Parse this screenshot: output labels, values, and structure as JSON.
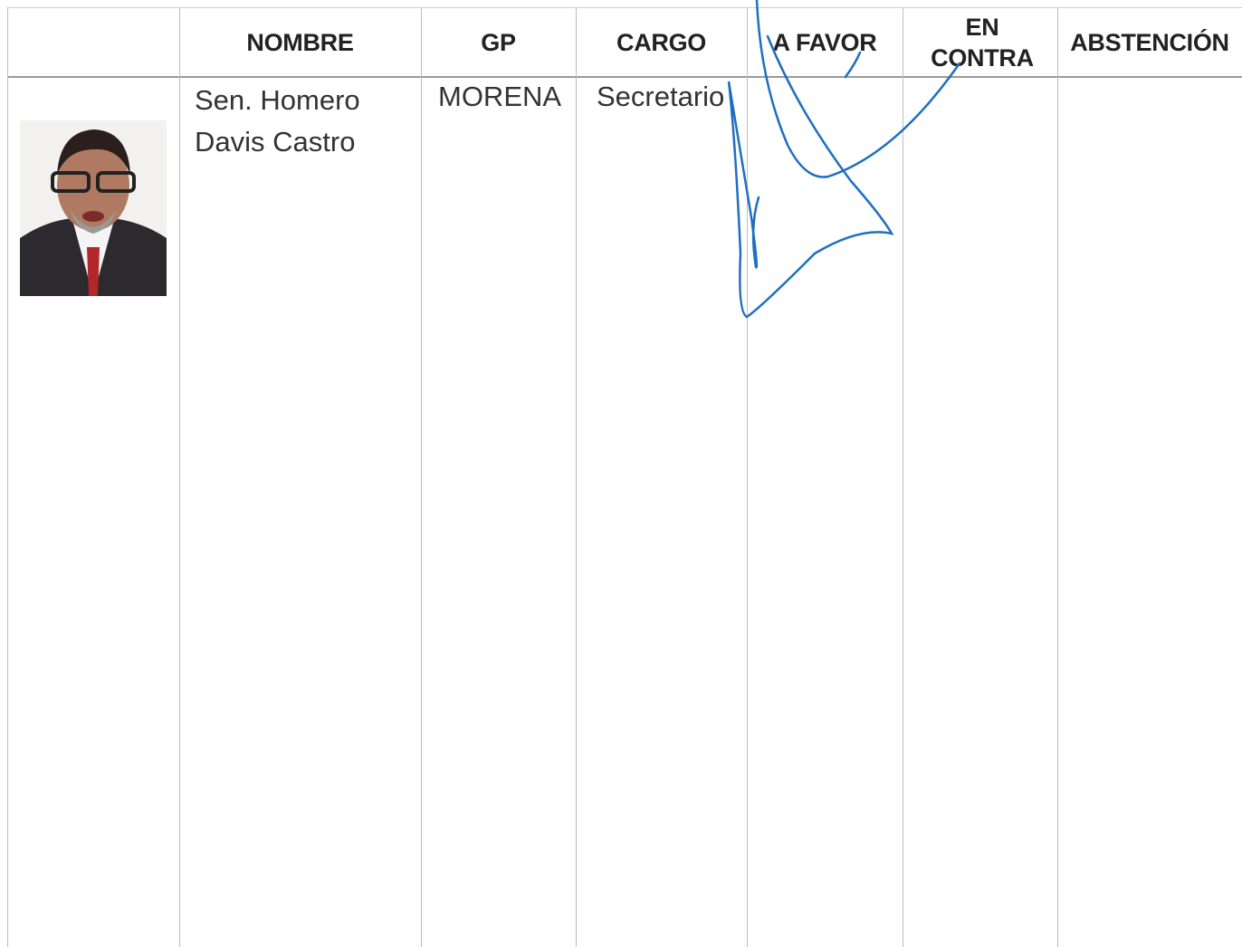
{
  "table": {
    "headers": [
      "NOMBRE",
      "GP",
      "CARGO",
      "A FAVOR",
      "EN CONTRA",
      "ABSTENCIÓN"
    ],
    "rows": [
      [
        "Sen. Homero Davis Castro",
        "MORENA",
        "Secretario"
      ]
    ]
  }
}
